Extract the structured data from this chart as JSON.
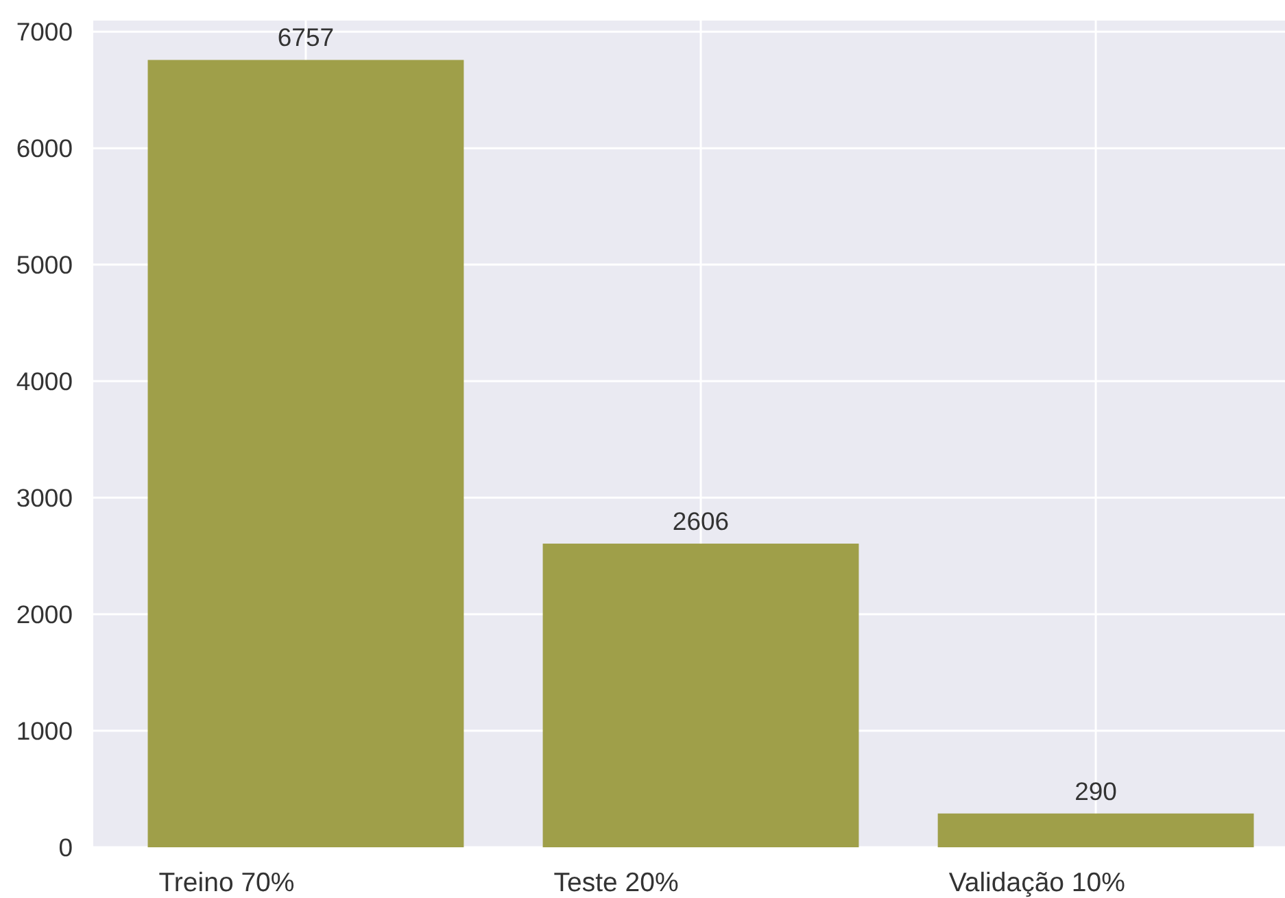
{
  "chart_data": {
    "type": "bar",
    "categories": [
      "Treino 70%",
      "Teste 20%",
      "Validação 10%"
    ],
    "values": [
      6757,
      2606,
      290
    ],
    "color": "#9f9f49",
    "ylim": [
      0,
      7095
    ],
    "yticks": [
      0,
      1000,
      2000,
      3000,
      4000,
      5000,
      6000,
      7000
    ],
    "grid": true,
    "data_labels": true
  }
}
